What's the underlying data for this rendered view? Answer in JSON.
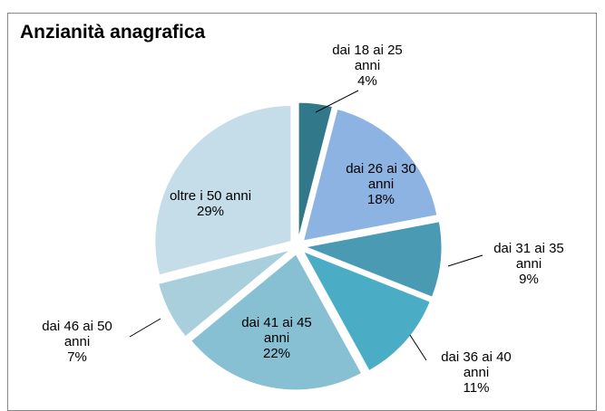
{
  "chart_data": {
    "type": "pie",
    "title": "Anzianità anagrafica",
    "categories": [
      "dai 18 ai 25 anni",
      "dai 26 ai 30 anni",
      "dai 31 ai 35 anni",
      "dai 36 ai 40 anni",
      "dai 41 ai 45 anni",
      "dai 46 ai 50 anni",
      "oltre i 50 anni"
    ],
    "values": [
      4,
      18,
      9,
      11,
      22,
      7,
      29
    ],
    "value_labels": [
      "4%",
      "18%",
      "9%",
      "11%",
      "22%",
      "7%",
      "29%"
    ],
    "colors": [
      "#31788a",
      "#8db3e2",
      "#4a9ab3",
      "#4bacc6",
      "#86c0d2",
      "#a9cfdd",
      "#c5dde8"
    ]
  }
}
